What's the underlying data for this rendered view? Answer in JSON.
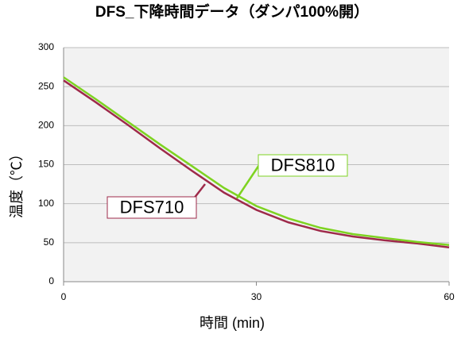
{
  "chart_data": {
    "type": "line",
    "title": "DFS_下降時間データ（ダンパ100%開）",
    "x_label": "時間 (min)",
    "y_label": "温度（℃）",
    "x": [
      0,
      5,
      10,
      15,
      20,
      25,
      30,
      35,
      40,
      45,
      50,
      55,
      60
    ],
    "series": [
      {
        "name": "DFS710",
        "color": "#9e2a4a",
        "values": [
          258,
          230,
          201,
          171,
          142,
          114,
          92,
          76,
          65,
          58,
          53,
          49,
          44
        ]
      },
      {
        "name": "DFS810",
        "color": "#7ed321",
        "values": [
          262,
          234,
          205,
          176,
          148,
          120,
          97,
          81,
          69,
          61,
          56,
          51,
          47
        ]
      }
    ],
    "xlim": [
      0,
      60
    ],
    "xticks": [
      0,
      30,
      60
    ],
    "ylim": [
      0,
      300
    ],
    "yticks": [
      0,
      50,
      100,
      150,
      200,
      250,
      300
    ],
    "grid": true
  }
}
